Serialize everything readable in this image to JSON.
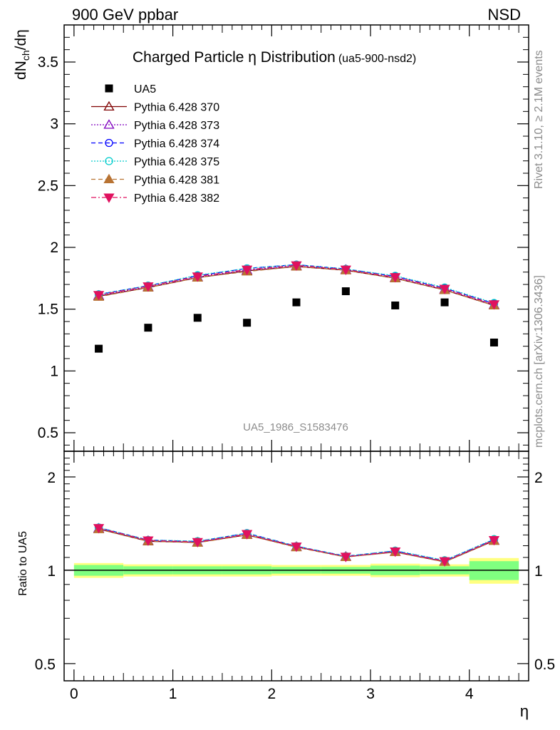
{
  "header": {
    "left": "900 GeV ppbar",
    "right": "NSD"
  },
  "side_labels": {
    "rivet": "Rivet 3.1.10, ≥ 2.1M events",
    "mcplots": "mcplots.cern.ch [arXiv:1306.3436]"
  },
  "chart_data": [
    {
      "type": "scatter",
      "panel": "main",
      "title": "Charged Particle η Distribution",
      "title_tag": "(ua5-900-nsd2)",
      "ylabel": "dN_ch/dη",
      "xlabel": "",
      "watermark": "UA5_1986_S1583476",
      "xlim": [
        -0.1,
        4.6
      ],
      "ylim": [
        0.35,
        3.8
      ],
      "x_ticks": [
        0,
        1,
        2,
        3,
        4
      ],
      "y_ticks": [
        0.5,
        1,
        1.5,
        2,
        2.5,
        3,
        3.5
      ],
      "y_tick_labels": [
        "0.5",
        "1",
        "1.5",
        "2",
        "2.5",
        "3",
        "3.5"
      ],
      "legend_position": "top-left",
      "x": [
        0.25,
        0.75,
        1.25,
        1.75,
        2.25,
        2.75,
        3.25,
        3.75,
        4.25
      ],
      "series": [
        {
          "name": "UA5",
          "color": "#000000",
          "marker": "square",
          "line": "none",
          "values": [
            1.18,
            1.35,
            1.43,
            1.39,
            1.555,
            1.645,
            1.53,
            1.555,
            1.23
          ]
        },
        {
          "name": "Pythia 6.428 370",
          "color": "#7f0000",
          "marker": "triangle-open",
          "line": "solid",
          "values": [
            1.605,
            1.675,
            1.755,
            1.81,
            1.845,
            1.815,
            1.75,
            1.655,
            1.53
          ]
        },
        {
          "name": "Pythia 6.428 373",
          "color": "#7f00bf",
          "marker": "triangle-open",
          "line": "dotted",
          "values": [
            1.61,
            1.68,
            1.76,
            1.815,
            1.85,
            1.82,
            1.755,
            1.66,
            1.535
          ]
        },
        {
          "name": "Pythia 6.428 374",
          "color": "#0000ff",
          "marker": "circle-open",
          "line": "dashed",
          "values": [
            1.62,
            1.69,
            1.77,
            1.83,
            1.86,
            1.825,
            1.765,
            1.67,
            1.545
          ]
        },
        {
          "name": "Pythia 6.428 375",
          "color": "#00cccc",
          "marker": "circle-open",
          "line": "dotted",
          "values": [
            1.62,
            1.69,
            1.775,
            1.83,
            1.86,
            1.825,
            1.77,
            1.675,
            1.55
          ]
        },
        {
          "name": "Pythia 6.428 381",
          "color": "#b87333",
          "marker": "triangle-filled",
          "line": "dashed",
          "values": [
            1.6,
            1.675,
            1.755,
            1.805,
            1.845,
            1.815,
            1.75,
            1.655,
            1.53
          ]
        },
        {
          "name": "Pythia 6.428 382",
          "color": "#e0115f",
          "marker": "triangle-down-filled",
          "line": "dashdot",
          "values": [
            1.615,
            1.685,
            1.765,
            1.82,
            1.855,
            1.82,
            1.76,
            1.665,
            1.54
          ]
        }
      ]
    },
    {
      "type": "scatter",
      "panel": "ratio",
      "ylabel": "Ratio to UA5",
      "xlabel": "η",
      "xlim": [
        -0.1,
        4.6
      ],
      "ylim": [
        0.44,
        2.42
      ],
      "log_y": true,
      "x_ticks": [
        0,
        1,
        2,
        3,
        4
      ],
      "x_tick_labels": [
        "0",
        "1",
        "2",
        "3",
        "4"
      ],
      "y_ticks": [
        0.5,
        1,
        2
      ],
      "y_tick_labels": [
        "0.5",
        "1",
        "2"
      ],
      "reference_line": 1,
      "uncertainty_bands": {
        "x_edges": [
          0,
          0.5,
          1,
          1.5,
          2,
          2.5,
          3,
          3.5,
          4,
          4.5
        ],
        "inner_low": [
          0.96,
          0.97,
          0.97,
          0.97,
          0.975,
          0.975,
          0.965,
          0.97,
          0.93
        ],
        "inner_high": [
          1.04,
          1.03,
          1.03,
          1.03,
          1.025,
          1.025,
          1.035,
          1.03,
          1.07
        ],
        "outer_low": [
          0.945,
          0.955,
          0.955,
          0.955,
          0.96,
          0.96,
          0.95,
          0.955,
          0.905
        ],
        "outer_high": [
          1.055,
          1.045,
          1.045,
          1.045,
          1.04,
          1.04,
          1.05,
          1.045,
          1.095
        ],
        "inner_color": "#80ff80",
        "outer_color": "#ffff80"
      },
      "x": [
        0.25,
        0.75,
        1.25,
        1.75,
        2.25,
        2.75,
        3.25,
        3.75,
        4.25
      ],
      "series": [
        {
          "name": "Pythia 6.428 370",
          "color": "#7f0000",
          "marker": "triangle-open",
          "line": "solid",
          "values": [
            1.36,
            1.24,
            1.23,
            1.3,
            1.19,
            1.105,
            1.145,
            1.065,
            1.245
          ]
        },
        {
          "name": "Pythia 6.428 373",
          "color": "#7f00bf",
          "marker": "triangle-open",
          "line": "dotted",
          "values": [
            1.365,
            1.245,
            1.23,
            1.305,
            1.19,
            1.107,
            1.147,
            1.067,
            1.248
          ]
        },
        {
          "name": "Pythia 6.428 374",
          "color": "#0000ff",
          "marker": "circle-open",
          "line": "dashed",
          "values": [
            1.373,
            1.252,
            1.238,
            1.317,
            1.196,
            1.11,
            1.154,
            1.074,
            1.256
          ]
        },
        {
          "name": "Pythia 6.428 375",
          "color": "#00cccc",
          "marker": "circle-open",
          "line": "dotted",
          "values": [
            1.373,
            1.252,
            1.241,
            1.317,
            1.196,
            1.11,
            1.157,
            1.077,
            1.26
          ]
        },
        {
          "name": "Pythia 6.428 381",
          "color": "#b87333",
          "marker": "triangle-filled",
          "line": "dashed",
          "values": [
            1.356,
            1.241,
            1.227,
            1.299,
            1.186,
            1.103,
            1.144,
            1.064,
            1.244
          ]
        },
        {
          "name": "Pythia 6.428 382",
          "color": "#e0115f",
          "marker": "triangle-down-filled",
          "line": "dashdot",
          "values": [
            1.369,
            1.248,
            1.234,
            1.309,
            1.193,
            1.106,
            1.15,
            1.07,
            1.252
          ]
        }
      ]
    }
  ]
}
